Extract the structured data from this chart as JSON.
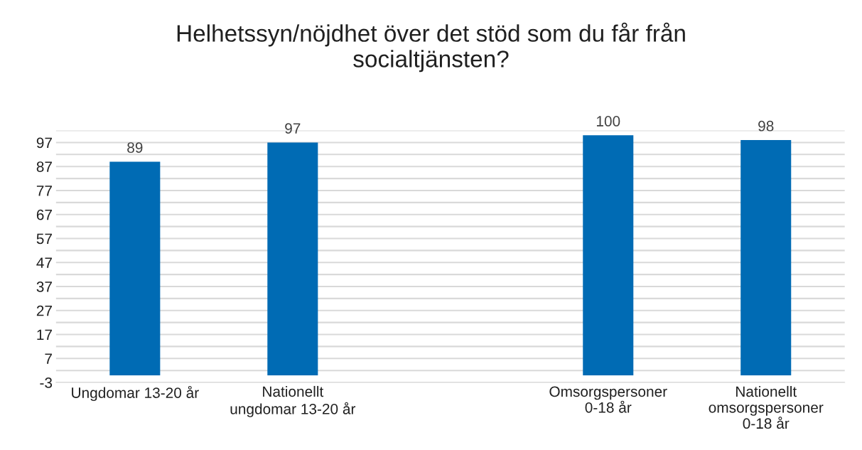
{
  "chart_data": {
    "type": "bar",
    "title": "Helhetssyn/nöjdhet över det stöd som du får från\nsocialtjänsten?",
    "categories": [
      "Ungdomar 13-20 år",
      "Nationellt\nungdomar 13-20 år",
      null,
      "Omsorgspersoner\n0-18 år",
      "Nationellt\nomsorgspersoner\n0-18 år"
    ],
    "values": [
      89,
      97,
      null,
      100,
      98
    ],
    "color": "#006bb4",
    "data_labels": true,
    "ylim": [
      -3,
      102
    ],
    "yticks": [
      -3,
      {
        "value": 2,
        "label": null
      },
      7,
      {
        "value": 12,
        "label": null
      },
      17,
      {
        "value": 22,
        "label": null
      },
      27,
      {
        "value": 32,
        "label": null
      },
      37,
      {
        "value": 42,
        "label": null
      },
      47,
      {
        "value": 52,
        "label": null
      },
      57,
      {
        "value": 62,
        "label": null
      },
      67,
      {
        "value": 72,
        "label": null
      },
      77,
      {
        "value": 82,
        "label": null
      },
      87,
      {
        "value": 92,
        "label": null
      },
      97,
      {
        "value": 102,
        "label": null
      }
    ],
    "grid": "y"
  }
}
